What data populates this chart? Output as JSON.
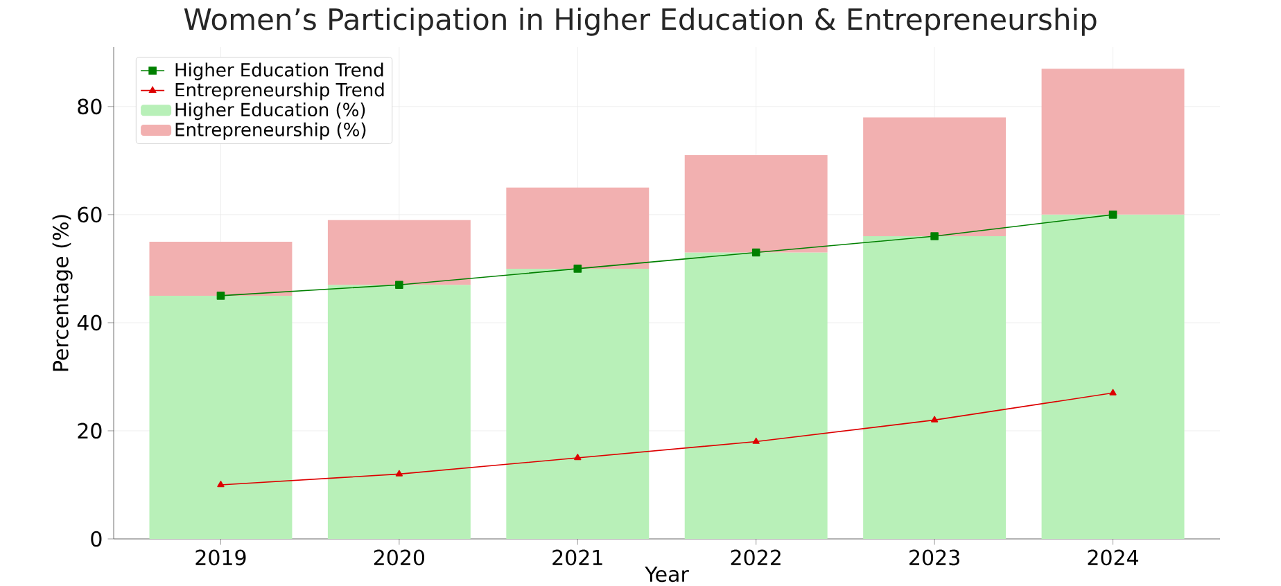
{
  "chart_data": {
    "type": "bar",
    "title": "Women’s Participation in Higher Education & Entrepreneurship",
    "xlabel": "Year",
    "ylabel": "Percentage (%)",
    "categories": [
      "2019",
      "2020",
      "2021",
      "2022",
      "2023",
      "2024"
    ],
    "stacked": true,
    "series": [
      {
        "name": "Higher Education (%)",
        "type": "bar",
        "color": "#b8f0b8",
        "values": [
          45,
          47,
          50,
          53,
          56,
          60
        ]
      },
      {
        "name": "Entrepreneurship (%)",
        "type": "bar",
        "color": "#f2b0b0",
        "values": [
          10,
          12,
          15,
          18,
          22,
          27
        ]
      },
      {
        "name": "Higher Education Trend",
        "type": "line",
        "marker": "square",
        "color": "#008000",
        "values": [
          45,
          47,
          50,
          53,
          56,
          60
        ]
      },
      {
        "name": "Entrepreneurship Trend",
        "type": "line",
        "marker": "triangle",
        "color": "#dd0000",
        "values": [
          10,
          12,
          15,
          18,
          22,
          27
        ]
      }
    ],
    "ylim": [
      0,
      91
    ],
    "yticks": [
      0,
      20,
      40,
      60,
      80
    ],
    "grid": true,
    "legend": "top left"
  }
}
